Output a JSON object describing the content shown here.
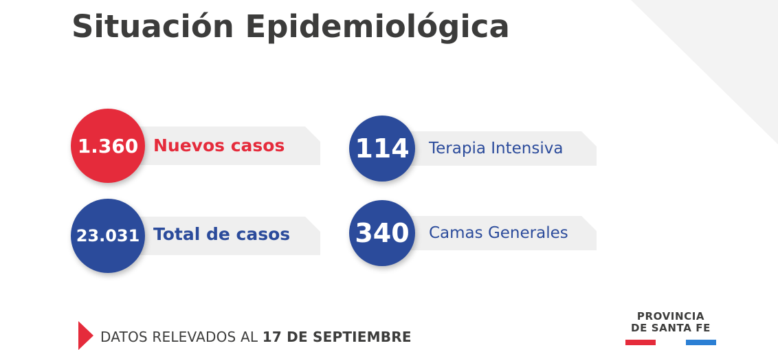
{
  "title": "Situación Epidemiológica",
  "colors": {
    "red": "#e52b3b",
    "blue": "#2b4b9b",
    "band": "#efefef",
    "text_dark": "#3c3c3b"
  },
  "stats": [
    {
      "value": "1.360",
      "label": "Nuevos casos",
      "color": "red"
    },
    {
      "value": "114",
      "label": "Terapia Intensiva",
      "color": "blue"
    },
    {
      "value": "23.031",
      "label": "Total de casos",
      "color": "blue"
    },
    {
      "value": "340",
      "label": "Camas Generales",
      "color": "blue"
    }
  ],
  "footer": {
    "prefix": "DATOS RELEVADOS AL",
    "date": "17 DE SEPTIEMBRE"
  },
  "logo": {
    "line1": "PROVINCIA",
    "line2": "DE SANTA FE",
    "bar_colors": [
      "#e52b3b",
      "#2b7fd4"
    ]
  }
}
